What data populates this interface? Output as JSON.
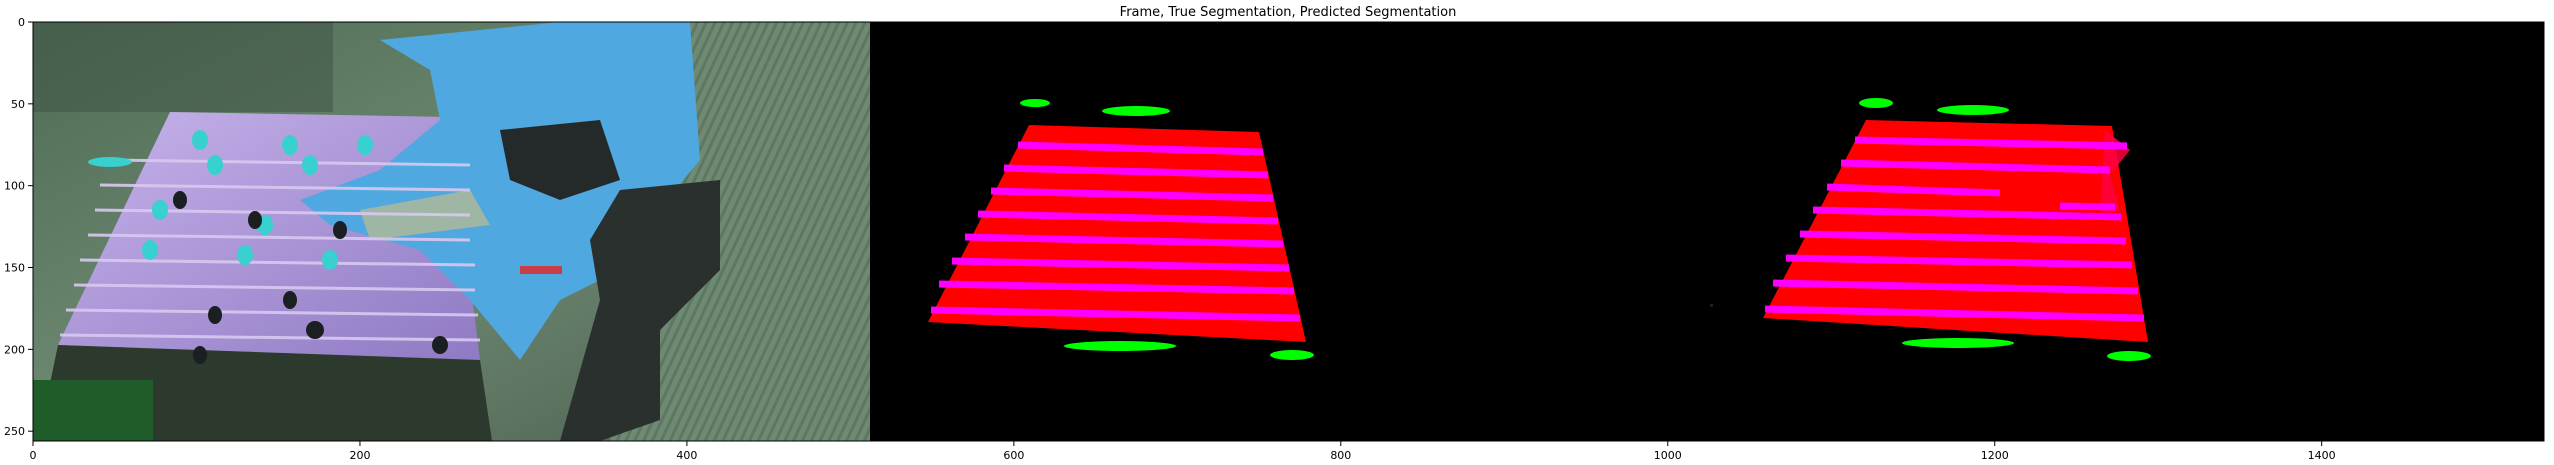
{
  "chart_data": {
    "type": "image",
    "title": "Frame, True Segmentation, Predicted Segmentation",
    "xlim": [
      0,
      1536
    ],
    "ylim": [
      256,
      0
    ],
    "xticks": [
      0,
      200,
      400,
      600,
      800,
      1000,
      1200,
      1400
    ],
    "yticks": [
      0,
      50,
      100,
      150,
      200,
      250
    ],
    "panels": [
      {
        "name": "Frame",
        "x_range": [
          0,
          512
        ]
      },
      {
        "name": "True Segmentation",
        "x_range": [
          512,
          1024
        ]
      },
      {
        "name": "Predicted Segmentation",
        "x_range": [
          1024,
          1536
        ]
      }
    ],
    "colors": {
      "table": "#ff0000",
      "rods": "#ff00ff",
      "goals": "#00ff00",
      "background": "#000000"
    }
  }
}
